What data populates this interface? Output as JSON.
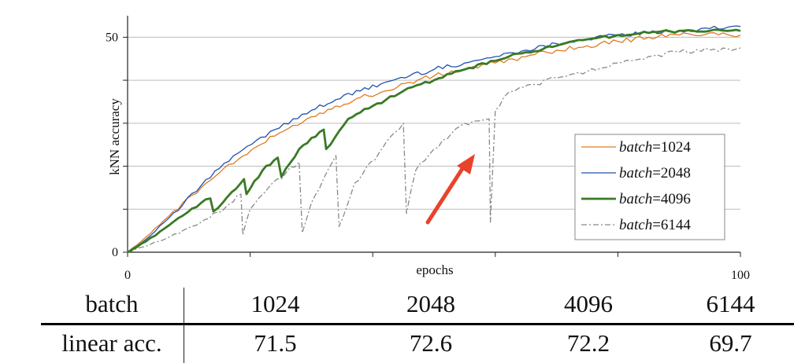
{
  "chart_data": {
    "type": "line",
    "xlabel": "epochs",
    "ylabel": "kNN accuracy",
    "xlim": [
      0,
      100
    ],
    "ylim": [
      0,
      55
    ],
    "x_tick_labels": [
      "0",
      "100"
    ],
    "y_tick_labels": [
      "0",
      "50"
    ],
    "y_ticks": [
      0,
      10,
      20,
      30,
      40,
      50
    ],
    "x_ticks": [
      0,
      20,
      40,
      60,
      80,
      100
    ],
    "grid": "horizontal",
    "legend_position": "center-right",
    "legend_prefix": "batch",
    "legend_sep": "=",
    "annotation": "red arrow pointing at the batch=6144 dip near epoch 58",
    "series": [
      {
        "name": "1024",
        "color": "#e07b20",
        "style": "solid",
        "x": [
          0,
          3,
          6,
          9,
          12,
          15,
          18,
          21,
          24,
          27,
          30,
          34,
          38,
          42,
          46,
          50,
          55,
          60,
          65,
          70,
          75,
          80,
          85,
          90,
          95,
          100
        ],
        "y": [
          0,
          3.5,
          7.5,
          11.5,
          15,
          18.5,
          21.5,
          24.5,
          27,
          29.5,
          31.5,
          34,
          36,
          37.5,
          39.5,
          41,
          42.5,
          44,
          45.5,
          47,
          48,
          49,
          50,
          50.5,
          51,
          50.5
        ]
      },
      {
        "name": "2048",
        "color": "#2050b0",
        "style": "solid",
        "x": [
          0,
          3,
          6,
          9,
          12,
          15,
          18,
          21,
          24,
          27,
          30,
          34,
          38,
          42,
          46,
          50,
          55,
          60,
          65,
          70,
          75,
          80,
          85,
          90,
          95,
          100
        ],
        "y": [
          0,
          3,
          7,
          11,
          15.5,
          19.5,
          23,
          26,
          28.5,
          31,
          33,
          35.5,
          37.5,
          39.5,
          41,
          42.5,
          44,
          45.5,
          47,
          48.5,
          49.5,
          50.5,
          51,
          51.5,
          52,
          52.5
        ]
      },
      {
        "name": "4096",
        "color": "#3a7a25",
        "style": "solid-thick",
        "x": [
          0,
          3,
          6,
          9,
          12,
          13.5,
          14,
          17,
          19,
          19.4,
          22,
          24.5,
          25.1,
          28,
          32,
          32.4,
          36,
          40,
          45,
          50,
          55,
          60,
          65,
          70,
          75,
          80,
          85,
          90,
          95,
          100
        ],
        "y": [
          0,
          2.5,
          5.5,
          8.5,
          11.5,
          12.5,
          9.5,
          14,
          17,
          13.5,
          19,
          22,
          17.5,
          24,
          28.5,
          24,
          31,
          34,
          37.5,
          40,
          42.5,
          44.5,
          46.5,
          48,
          49.5,
          50.5,
          51,
          51.5,
          51.5,
          51.5
        ]
      },
      {
        "name": "6144",
        "color": "#888888",
        "style": "dashdot",
        "x": [
          0,
          5,
          9,
          12,
          16,
          18.5,
          18.8,
          20,
          23,
          28,
          28.5,
          30,
          34,
          34.5,
          37,
          41,
          43,
          45,
          45.5,
          47,
          50,
          55,
          59,
          59.2,
          60,
          62,
          66,
          70,
          75,
          80,
          85,
          90,
          95,
          100
        ],
        "y": [
          0,
          2.5,
          5,
          7,
          10.5,
          13.5,
          4,
          10,
          15,
          21,
          4.5,
          11.5,
          22.5,
          6,
          16,
          23,
          27,
          30,
          9,
          19,
          24,
          30,
          31,
          7,
          33,
          37,
          39,
          40.5,
          42,
          44,
          45.5,
          46.5,
          47,
          47.5
        ]
      }
    ]
  },
  "table": {
    "row_header": "batch",
    "values_header": [
      "1024",
      "2048",
      "4096",
      "6144"
    ],
    "row_label": "linear acc.",
    "values": [
      "71.5",
      "72.6",
      "72.2",
      "69.7"
    ]
  }
}
